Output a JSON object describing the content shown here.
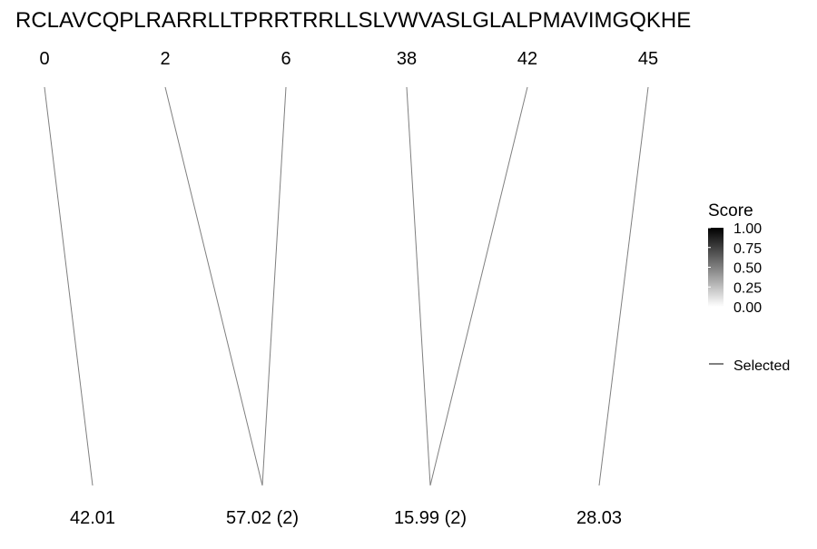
{
  "sequence": "RCLAVCQPLRARRLLTPRRTRRLLSLVWVASLGLALPMAVIMGQKHE",
  "top_labels": [
    "0",
    "2",
    "6",
    "38",
    "42",
    "45"
  ],
  "bottom_labels": [
    "42.01",
    "57.02 (2)",
    "15.99 (2)",
    "28.03"
  ],
  "connections": [
    {
      "from": 0,
      "to": 0
    },
    {
      "from": 1,
      "to": 1
    },
    {
      "from": 2,
      "to": 1
    },
    {
      "from": 3,
      "to": 2
    },
    {
      "from": 4,
      "to": 2
    },
    {
      "from": 5,
      "to": 3
    }
  ],
  "legend": {
    "score_title": "Score",
    "score_ticks": [
      "1.00",
      "0.75",
      "0.50",
      "0.25",
      "0.00"
    ],
    "gradient_colors": [
      "#000000",
      "#ffffff"
    ],
    "selected_label": "Selected"
  },
  "colors": {
    "line": "#7f7f7f",
    "text": "#000000"
  }
}
